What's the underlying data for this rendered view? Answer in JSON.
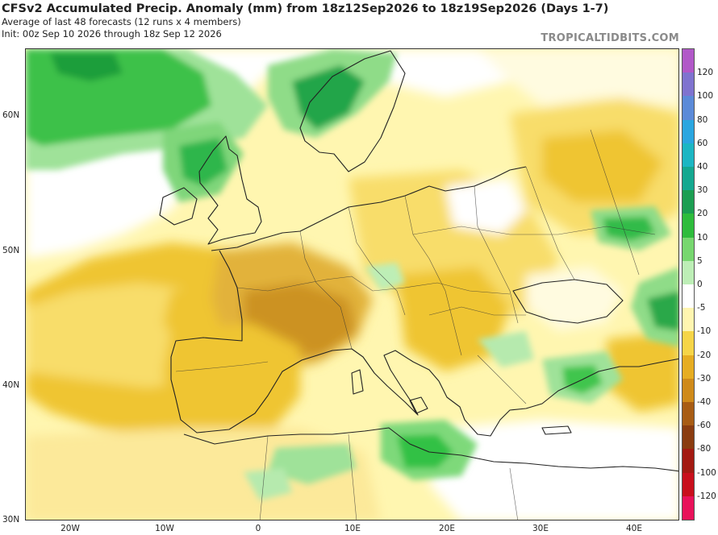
{
  "header": {
    "title": "CFSv2 Accumulated Precip. Anomaly (mm) from 18z12Sep2026 to 18z19Sep2026 (Days 1-7)",
    "line2": "Average of last 48 forecasts (12 runs x 4 members)",
    "line3": "Init: 00z Sep 10 2026 through 18z Sep 12 2026",
    "brand": "TROPICALTIDBITS.COM"
  },
  "map": {
    "lat_labels": [
      "60N",
      "50N",
      "40N",
      "30N"
    ],
    "lon_labels": [
      "20W",
      "10W",
      "0",
      "10E",
      "20E",
      "30E",
      "40E"
    ],
    "colors": {
      "ocean_neutral": "#ffffff",
      "light_yellow": "#fff6b0",
      "yellow": "#f8dd6a",
      "gold": "#efc531",
      "dark_gold": "#d7a520",
      "brown": "#c0861a",
      "light_green": "#c9f0c4",
      "green": "#62d05e",
      "dark_green": "#1fb33a",
      "border": "#222222"
    }
  },
  "colorbar": {
    "labels": [
      "120",
      "100",
      "80",
      "60",
      "40",
      "30",
      "20",
      "10",
      "5",
      "0",
      "-5",
      "-10",
      "-20",
      "-30",
      "-40",
      "-60",
      "-80",
      "-100",
      "-120"
    ],
    "colors": [
      "#b158c8",
      "#7f73cf",
      "#5b8ad8",
      "#2aa6e0",
      "#1cb6c3",
      "#14a890",
      "#1c9e52",
      "#2ebc3c",
      "#77d76f",
      "#bdeeb6",
      "#ffffff",
      "#fff5b0",
      "#f6d548",
      "#e6ad22",
      "#cf8a1a",
      "#a85c14",
      "#8a3c10",
      "#a31a12",
      "#c80f1c",
      "#e8125a"
    ]
  }
}
